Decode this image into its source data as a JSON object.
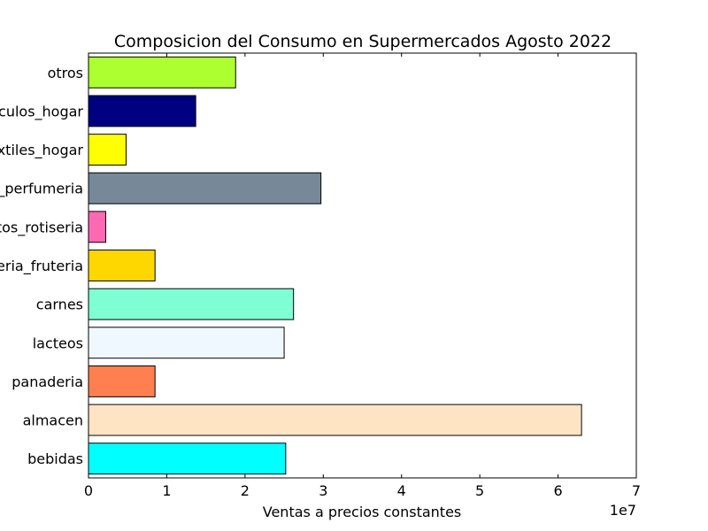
{
  "chart_data": {
    "type": "bar",
    "orientation": "horizontal",
    "title": "Composicion del Consumo en Supermercados Agosto 2022",
    "xlabel": "Ventas a precios constantes",
    "x_offset_text": "1e7",
    "ylabel": "",
    "xlim": [
      0,
      7
    ],
    "x_ticks": [
      "0",
      "1",
      "2",
      "3",
      "4",
      "5",
      "6",
      "7"
    ],
    "grid": false,
    "categories": [
      "bebidas",
      "almacen",
      "panaderia",
      "lacteos",
      "carnes",
      "verduleria_fruteria",
      "alimentos_rotiseria",
      "limpieza_perfumeria",
      "textiles_hogar",
      "electronicos_articulos_hogar",
      "otros"
    ],
    "values": [
      2.52,
      6.3,
      0.85,
      2.5,
      2.62,
      0.85,
      0.22,
      2.97,
      0.48,
      1.37,
      1.88
    ],
    "value_unit_multiplier": 10000000,
    "colors": [
      "#00ffff",
      "#ffe4c4",
      "#ff7f50",
      "#f0f8ff",
      "#7fffd4",
      "#ffd700",
      "#ff69b4",
      "#778899",
      "#ffff00",
      "#000080",
      "#adff2f"
    ]
  }
}
